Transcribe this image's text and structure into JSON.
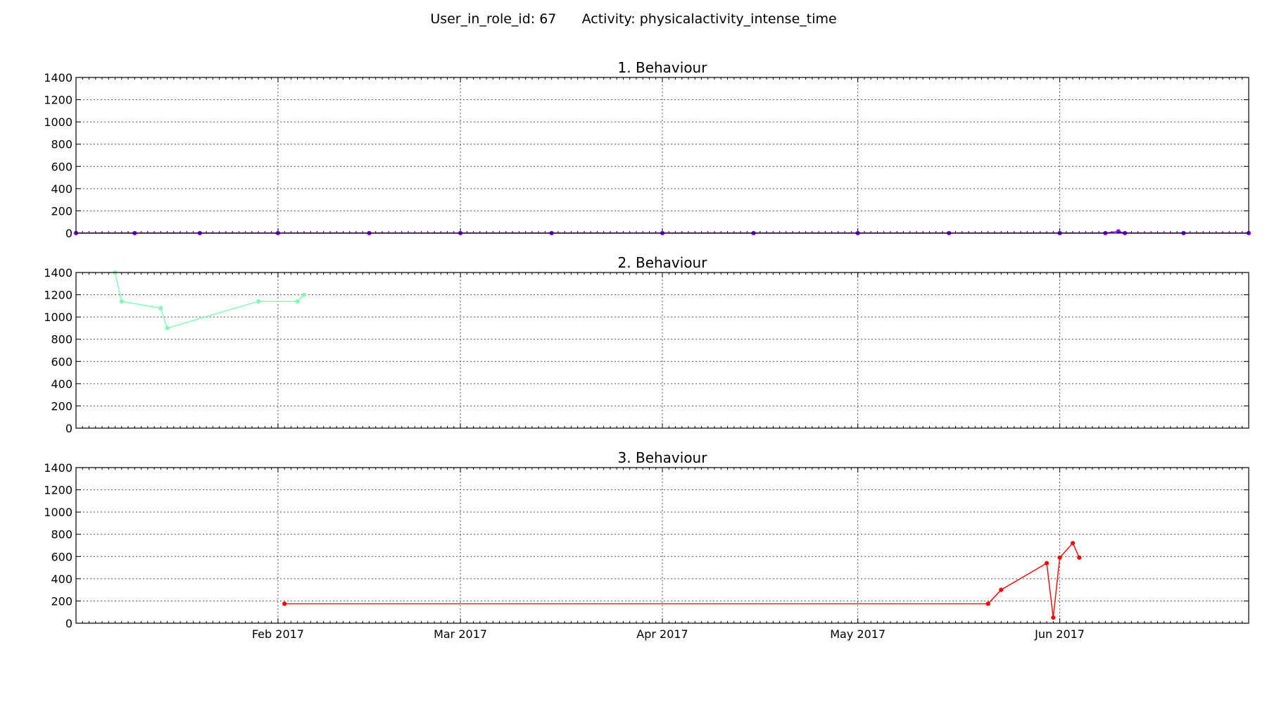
{
  "figure": {
    "title": "User_in_role_id: 67      Activity: physicalactivity_intense_time"
  },
  "chart_data": [
    {
      "type": "line",
      "title": "1. Behaviour",
      "ylim": [
        0,
        1400
      ],
      "yticks": [
        0,
        200,
        400,
        600,
        800,
        1000,
        1200,
        1400
      ],
      "xlim": [
        "2017-01-01",
        "2017-06-30"
      ],
      "xticks": [
        {
          "date": "2017-02-01",
          "label": ""
        },
        {
          "date": "2017-03-01",
          "label": ""
        },
        {
          "date": "2017-04-01",
          "label": ""
        },
        {
          "date": "2017-05-01",
          "label": ""
        },
        {
          "date": "2017-06-01",
          "label": ""
        }
      ],
      "grid": true,
      "series": [
        {
          "color": "#7f00ff",
          "marker": true,
          "points": [
            {
              "x": "2017-01-01",
              "y": 0
            },
            {
              "x": "2017-01-10",
              "y": 0
            },
            {
              "x": "2017-01-20",
              "y": 0
            },
            {
              "x": "2017-02-01",
              "y": 0
            },
            {
              "x": "2017-02-15",
              "y": 0
            },
            {
              "x": "2017-03-01",
              "y": 0
            },
            {
              "x": "2017-03-15",
              "y": 0
            },
            {
              "x": "2017-04-01",
              "y": 0
            },
            {
              "x": "2017-04-15",
              "y": 0
            },
            {
              "x": "2017-05-01",
              "y": 0
            },
            {
              "x": "2017-05-15",
              "y": 0
            },
            {
              "x": "2017-06-01",
              "y": 0
            },
            {
              "x": "2017-06-08",
              "y": 0
            },
            {
              "x": "2017-06-10",
              "y": 15
            },
            {
              "x": "2017-06-11",
              "y": 0
            },
            {
              "x": "2017-06-20",
              "y": 0
            },
            {
              "x": "2017-06-30",
              "y": 0
            }
          ]
        }
      ]
    },
    {
      "type": "line",
      "title": "2. Behaviour",
      "ylim": [
        0,
        1400
      ],
      "yticks": [
        0,
        200,
        400,
        600,
        800,
        1000,
        1200,
        1400
      ],
      "xlim": [
        "2017-01-01",
        "2017-06-30"
      ],
      "xticks": [
        {
          "date": "2017-02-01",
          "label": ""
        },
        {
          "date": "2017-03-01",
          "label": ""
        },
        {
          "date": "2017-04-01",
          "label": ""
        },
        {
          "date": "2017-05-01",
          "label": ""
        },
        {
          "date": "2017-06-01",
          "label": ""
        }
      ],
      "grid": true,
      "series": [
        {
          "color": "#7fffb2",
          "marker": true,
          "points": [
            {
              "x": "2017-01-07",
              "y": 1400
            },
            {
              "x": "2017-01-08",
              "y": 1140
            },
            {
              "x": "2017-01-14",
              "y": 1080
            },
            {
              "x": "2017-01-15",
              "y": 900
            },
            {
              "x": "2017-01-29",
              "y": 1140
            },
            {
              "x": "2017-02-04",
              "y": 1140
            },
            {
              "x": "2017-02-05",
              "y": 1200
            }
          ]
        }
      ]
    },
    {
      "type": "line",
      "title": "3. Behaviour",
      "ylim": [
        0,
        1400
      ],
      "yticks": [
        0,
        200,
        400,
        600,
        800,
        1000,
        1200,
        1400
      ],
      "xlim": [
        "2017-01-01",
        "2017-06-30"
      ],
      "xticks": [
        {
          "date": "2017-02-01",
          "label": "Feb 2017"
        },
        {
          "date": "2017-03-01",
          "label": "Mar 2017"
        },
        {
          "date": "2017-04-01",
          "label": "Apr 2017"
        },
        {
          "date": "2017-05-01",
          "label": "May 2017"
        },
        {
          "date": "2017-06-01",
          "label": "Jun 2017"
        }
      ],
      "grid": true,
      "series": [
        {
          "color": "#ff0000",
          "marker": true,
          "points": [
            {
              "x": "2017-02-02",
              "y": 175
            },
            {
              "x": "2017-05-21",
              "y": 175
            },
            {
              "x": "2017-05-23",
              "y": 300
            },
            {
              "x": "2017-05-30",
              "y": 540
            },
            {
              "x": "2017-05-31",
              "y": 50
            },
            {
              "x": "2017-06-01",
              "y": 590
            },
            {
              "x": "2017-06-03",
              "y": 720
            },
            {
              "x": "2017-06-04",
              "y": 590
            }
          ]
        }
      ]
    }
  ]
}
